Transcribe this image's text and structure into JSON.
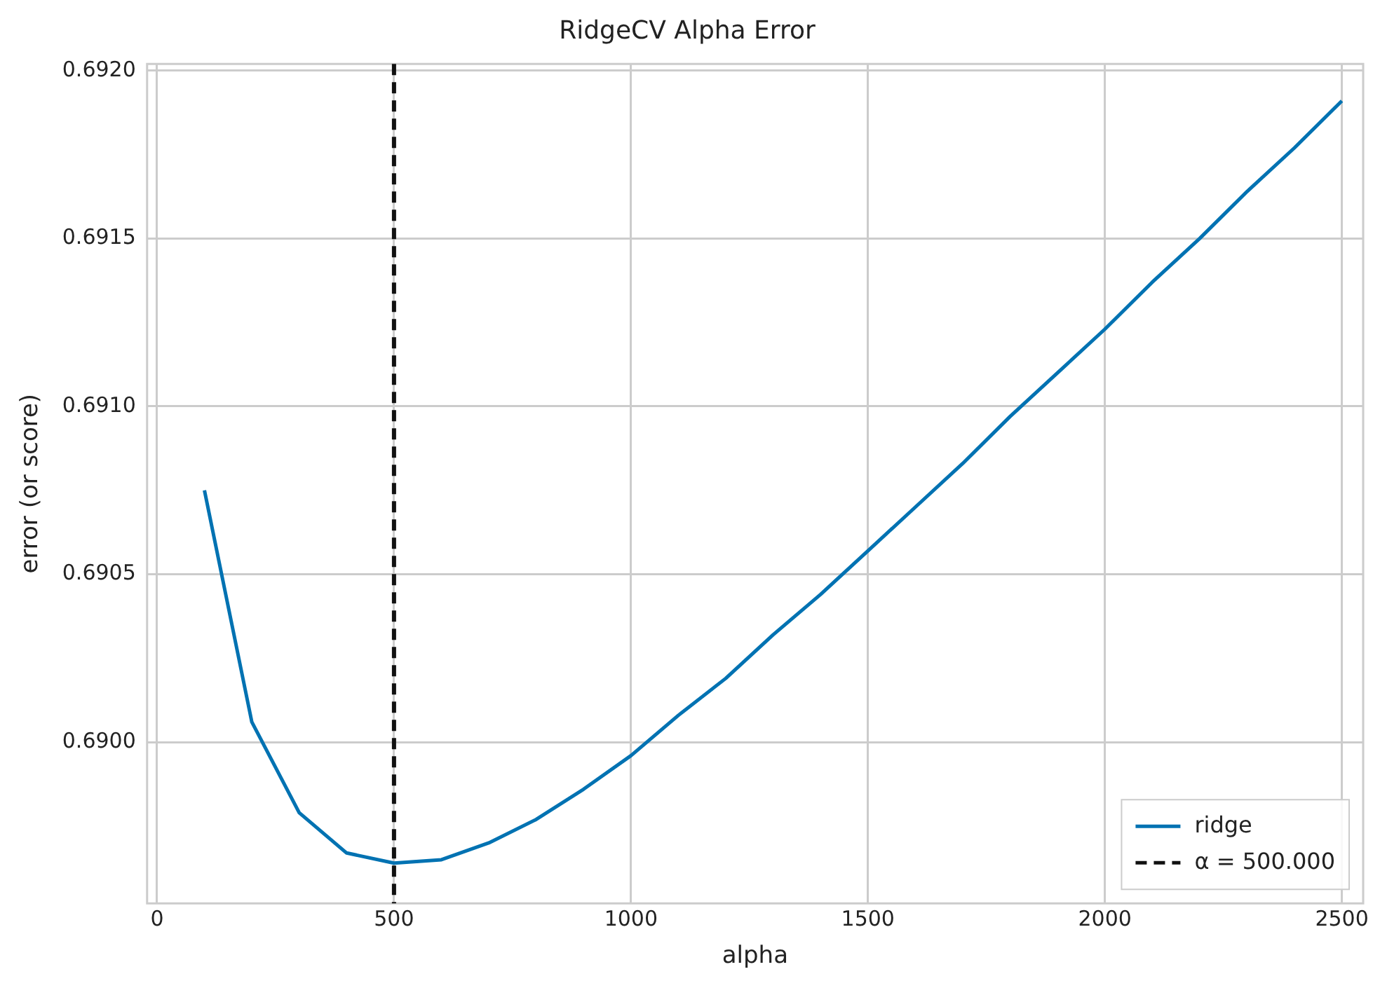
{
  "chart_data": {
    "type": "line",
    "title": "RidgeCV Alpha Error",
    "xlabel": "alpha",
    "ylabel": "error (or score)",
    "x": [
      100,
      200,
      300,
      400,
      500,
      600,
      700,
      800,
      900,
      1000,
      1100,
      1200,
      1300,
      1400,
      1500,
      1600,
      1700,
      1800,
      1900,
      2000,
      2100,
      2200,
      2300,
      2400,
      2500
    ],
    "series": [
      {
        "name": "ridge",
        "color": "#0072b2",
        "values": [
          0.69075,
          0.69006,
          0.68979,
          0.68967,
          0.68964,
          0.68965,
          0.6897,
          0.68977,
          0.68986,
          0.68996,
          0.69008,
          0.69019,
          0.69032,
          0.69044,
          0.69057,
          0.6907,
          0.69083,
          0.69097,
          0.6911,
          0.69123,
          0.69137,
          0.6915,
          0.69164,
          0.69177,
          0.69191
        ]
      }
    ],
    "ref_lines": [
      {
        "axis": "x",
        "value": 500,
        "label": "α = 500.000",
        "color": "#111111",
        "line_style": "dashed"
      }
    ],
    "xlim": [
      -21,
      2545
    ],
    "ylim": [
      0.68952,
      0.69202
    ],
    "xticks": [
      0,
      500,
      1000,
      1500,
      2000,
      2500
    ],
    "yticks": [
      {
        "value": 0.69,
        "label": "0.6900"
      },
      {
        "value": 0.6905,
        "label": "0.6905"
      },
      {
        "value": 0.691,
        "label": "0.6910"
      },
      {
        "value": 0.6915,
        "label": "0.6915"
      },
      {
        "value": 0.692,
        "label": "0.6920"
      }
    ],
    "grid": true,
    "legend": "bottom right",
    "marker": "none",
    "line_style": "solid"
  }
}
